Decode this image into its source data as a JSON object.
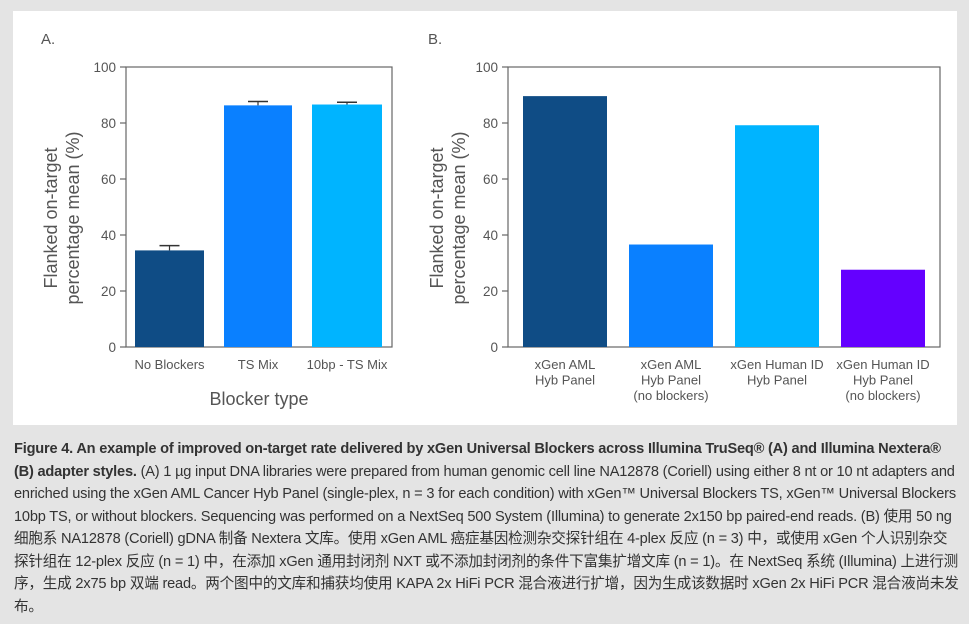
{
  "chart_data": [
    {
      "type": "bar",
      "panel_label": "A.",
      "categories": [
        "No Blockers",
        "TS Mix",
        "10bp - TS Mix"
      ],
      "values": [
        34.5,
        86.3,
        86.6
      ],
      "error_upper": [
        36.2,
        87.7,
        87.4
      ],
      "colors": [
        "#0f4c85",
        "#0a80ff",
        "#00b4ff"
      ],
      "xlabel": "Blocker type",
      "ylabel": [
        "Flanked on-target",
        "percentage mean (%)"
      ],
      "ylim": [
        0,
        100
      ],
      "yticks": [
        0,
        20,
        40,
        60,
        80,
        100
      ],
      "grid": false
    },
    {
      "type": "bar",
      "panel_label": "B.",
      "categories": [
        [
          "xGen AML",
          "Hyb Panel"
        ],
        [
          "xGen AML",
          "Hyb Panel",
          "(no blockers)"
        ],
        [
          "xGen Human ID",
          "Hyb Panel"
        ],
        [
          "xGen Human ID",
          "Hyb Panel",
          "(no blockers)"
        ]
      ],
      "values": [
        89.6,
        36.6,
        79.2,
        27.6
      ],
      "colors": [
        "#0f4c85",
        "#0a80ff",
        "#00b4ff",
        "#6400ff"
      ],
      "xlabel": "",
      "ylabel": [
        "Flanked on-target",
        "percentage mean (%)"
      ],
      "ylim": [
        0,
        100
      ],
      "yticks": [
        0,
        20,
        40,
        60,
        80,
        100
      ],
      "grid": false
    }
  ],
  "caption": {
    "bold": "Figure 4. An example of improved on-target rate delivered by xGen Universal Blockers across Illumina TruSeq® (A) and Illumina Nextera® (B) adapter styles.",
    "text": " (A) 1 µg input DNA libraries were prepared from human genomic cell line NA12878 (Coriell) using either 8 nt or 10 nt adapters and enriched using the xGen AML Cancer Hyb Panel (single-plex, n = 3 for each condition) with xGen™ Universal Blockers TS, xGen™ Universal Blockers 10bp TS, or without blockers. Sequencing was performed on a NextSeq 500 System (Illumina) to generate 2x150 bp paired-end reads. (B) 使用 50 ng 细胞系 NA12878 (Coriell) gDNA 制备 Nextera 文库。使用 xGen AML 癌症基因检测杂交探针组在 4-plex 反应 (n = 3) 中，或使用 xGen 个人识别杂交探针组在 12-plex 反应 (n = 1) 中，在添加 xGen 通用封闭剂 NXT 或不添加封闭剂的条件下富集扩增文库 (n = 1)。在 NextSeq 系统 (Illumina) 上进行测序，生成 2x75 bp 双端 read。两个图中的文库和捕获均使用 KAPA 2x HiFi PCR 混合液进行扩增，因为生成该数据时 xGen 2x HiFi PCR 混合液尚未发布。"
  }
}
